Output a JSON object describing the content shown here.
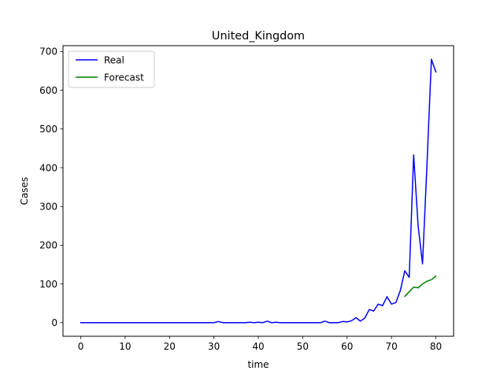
{
  "chart_data": {
    "type": "line",
    "title": "United_Kingdom",
    "xlabel": "time",
    "ylabel": "Cases",
    "xlim": [
      -4,
      84
    ],
    "ylim": [
      -35,
      715
    ],
    "xticks": [
      0,
      10,
      20,
      30,
      40,
      50,
      60,
      70,
      80
    ],
    "yticks": [
      0,
      100,
      200,
      300,
      400,
      500,
      600,
      700
    ],
    "grid": false,
    "legend": "top-left",
    "series": [
      {
        "name": "Real",
        "color": "#0000ff",
        "x": [
          0,
          1,
          2,
          3,
          4,
          5,
          6,
          7,
          8,
          9,
          10,
          11,
          12,
          13,
          14,
          15,
          16,
          17,
          18,
          19,
          20,
          21,
          22,
          23,
          24,
          25,
          26,
          27,
          28,
          29,
          30,
          31,
          32,
          33,
          34,
          35,
          36,
          37,
          38,
          39,
          40,
          41,
          42,
          43,
          44,
          45,
          46,
          47,
          48,
          49,
          50,
          51,
          52,
          53,
          54,
          55,
          56,
          57,
          58,
          59,
          60,
          61,
          62,
          63,
          64,
          65,
          66,
          67,
          68,
          69,
          70,
          71,
          72,
          73,
          74,
          75,
          76,
          77,
          78,
          79,
          80
        ],
        "y": [
          0,
          0,
          0,
          0,
          0,
          0,
          0,
          0,
          0,
          0,
          0,
          0,
          0,
          0,
          0,
          0,
          0,
          0,
          0,
          0,
          0,
          0,
          0,
          0,
          0,
          0,
          0,
          0,
          0,
          0,
          0,
          3,
          0,
          0,
          0,
          0,
          0,
          0,
          1,
          0,
          1,
          0,
          4,
          0,
          1,
          0,
          0,
          0,
          0,
          0,
          0,
          0,
          0,
          0,
          0,
          4,
          0,
          0,
          0,
          3,
          2,
          5,
          13,
          4,
          12,
          34,
          30,
          48,
          44,
          67,
          48,
          52,
          83,
          134,
          117,
          433,
          251,
          152,
          407,
          680,
          647
        ]
      },
      {
        "name": "Forecast",
        "color": "#008000",
        "x": [
          73,
          74,
          75,
          76,
          77,
          78,
          79,
          80
        ],
        "y": [
          68,
          80,
          92,
          90,
          100,
          107,
          111,
          120
        ]
      }
    ]
  }
}
